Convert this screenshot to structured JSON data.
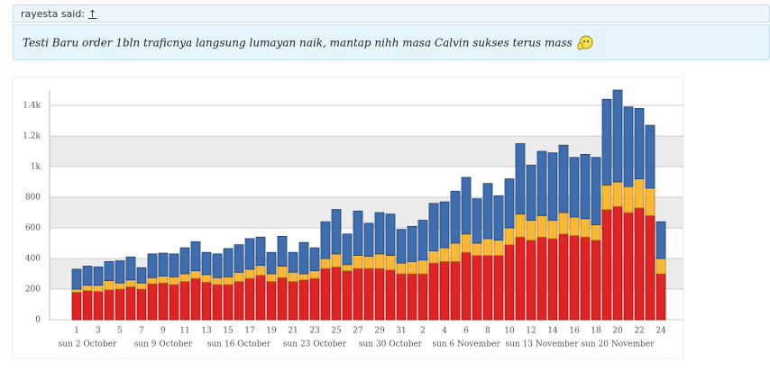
{
  "post": {
    "author": "rayesta said:",
    "link": "↑",
    "quote": "Testi Baru order 1bln traficnya langsung lumayan naik, mantap nihh masa Calvin sukses terus mass"
  },
  "chart_data": {
    "type": "stacked_bar",
    "categories": [
      "1",
      null,
      "3",
      null,
      "5",
      null,
      "7",
      null,
      "9",
      null,
      "11",
      null,
      "13",
      null,
      "15",
      null,
      "17",
      null,
      "19",
      null,
      "21",
      null,
      "23",
      null,
      "25",
      null,
      "27",
      null,
      "29",
      null,
      "31",
      null,
      "2",
      null,
      "4",
      null,
      "6",
      null,
      "8",
      null,
      "10",
      null,
      "12",
      null,
      "14",
      null,
      "16",
      null,
      "18",
      null,
      "20",
      null,
      "22",
      null,
      "24"
    ],
    "weeks": [
      null,
      "sun 2 October",
      null,
      null,
      null,
      null,
      null,
      null,
      "sun 9 October",
      null,
      null,
      null,
      null,
      null,
      null,
      "sun 16 October",
      null,
      null,
      null,
      null,
      null,
      null,
      "sun 23 October",
      null,
      null,
      null,
      null,
      null,
      null,
      "sun 30 October",
      null,
      null,
      null,
      null,
      null,
      null,
      "sun 6 November",
      null,
      null,
      null,
      null,
      null,
      null,
      "sun 13 November",
      null,
      null,
      null,
      null,
      null,
      null,
      "sun 20 November",
      null,
      null,
      null,
      null
    ],
    "series": [
      {
        "color": "#e02424",
        "values": [
          180,
          190,
          185,
          195,
          200,
          215,
          200,
          235,
          240,
          230,
          250,
          270,
          245,
          230,
          230,
          250,
          270,
          290,
          250,
          275,
          250,
          260,
          270,
          335,
          345,
          320,
          335,
          335,
          335,
          325,
          300,
          300,
          300,
          370,
          380,
          380,
          440,
          420,
          420,
          420,
          490,
          540,
          520,
          540,
          530,
          560,
          550,
          540,
          520,
          720,
          740,
          700,
          730,
          680,
          300
        ]
      },
      {
        "color": "#f9b934",
        "values": [
          20,
          35,
          40,
          60,
          40,
          45,
          40,
          40,
          45,
          50,
          50,
          50,
          50,
          45,
          50,
          60,
          60,
          65,
          50,
          75,
          60,
          40,
          50,
          65,
          85,
          40,
          85,
          80,
          95,
          95,
          70,
          80,
          90,
          80,
          90,
          120,
          120,
          80,
          110,
          100,
          110,
          150,
          130,
          140,
          120,
          140,
          120,
          120,
          100,
          160,
          160,
          170,
          190,
          180,
          100
        ]
      },
      {
        "color": "#3f6eae",
        "values": [
          130,
          125,
          120,
          125,
          145,
          150,
          100,
          155,
          150,
          150,
          170,
          190,
          145,
          155,
          185,
          180,
          200,
          185,
          140,
          195,
          130,
          205,
          150,
          240,
          290,
          200,
          290,
          215,
          270,
          270,
          220,
          230,
          260,
          310,
          300,
          340,
          370,
          290,
          360,
          290,
          320,
          460,
          360,
          420,
          440,
          440,
          390,
          420,
          440,
          560,
          600,
          520,
          460,
          410,
          240
        ]
      }
    ],
    "ylim": [
      0,
      1500
    ],
    "yticks": [
      0,
      200,
      400,
      600,
      800,
      {
        "value": 1000,
        "label": "1k"
      },
      {
        "value": 1200,
        "label": "1.2k"
      },
      {
        "value": 1400,
        "label": "1.4k"
      }
    ],
    "grid": true
  }
}
